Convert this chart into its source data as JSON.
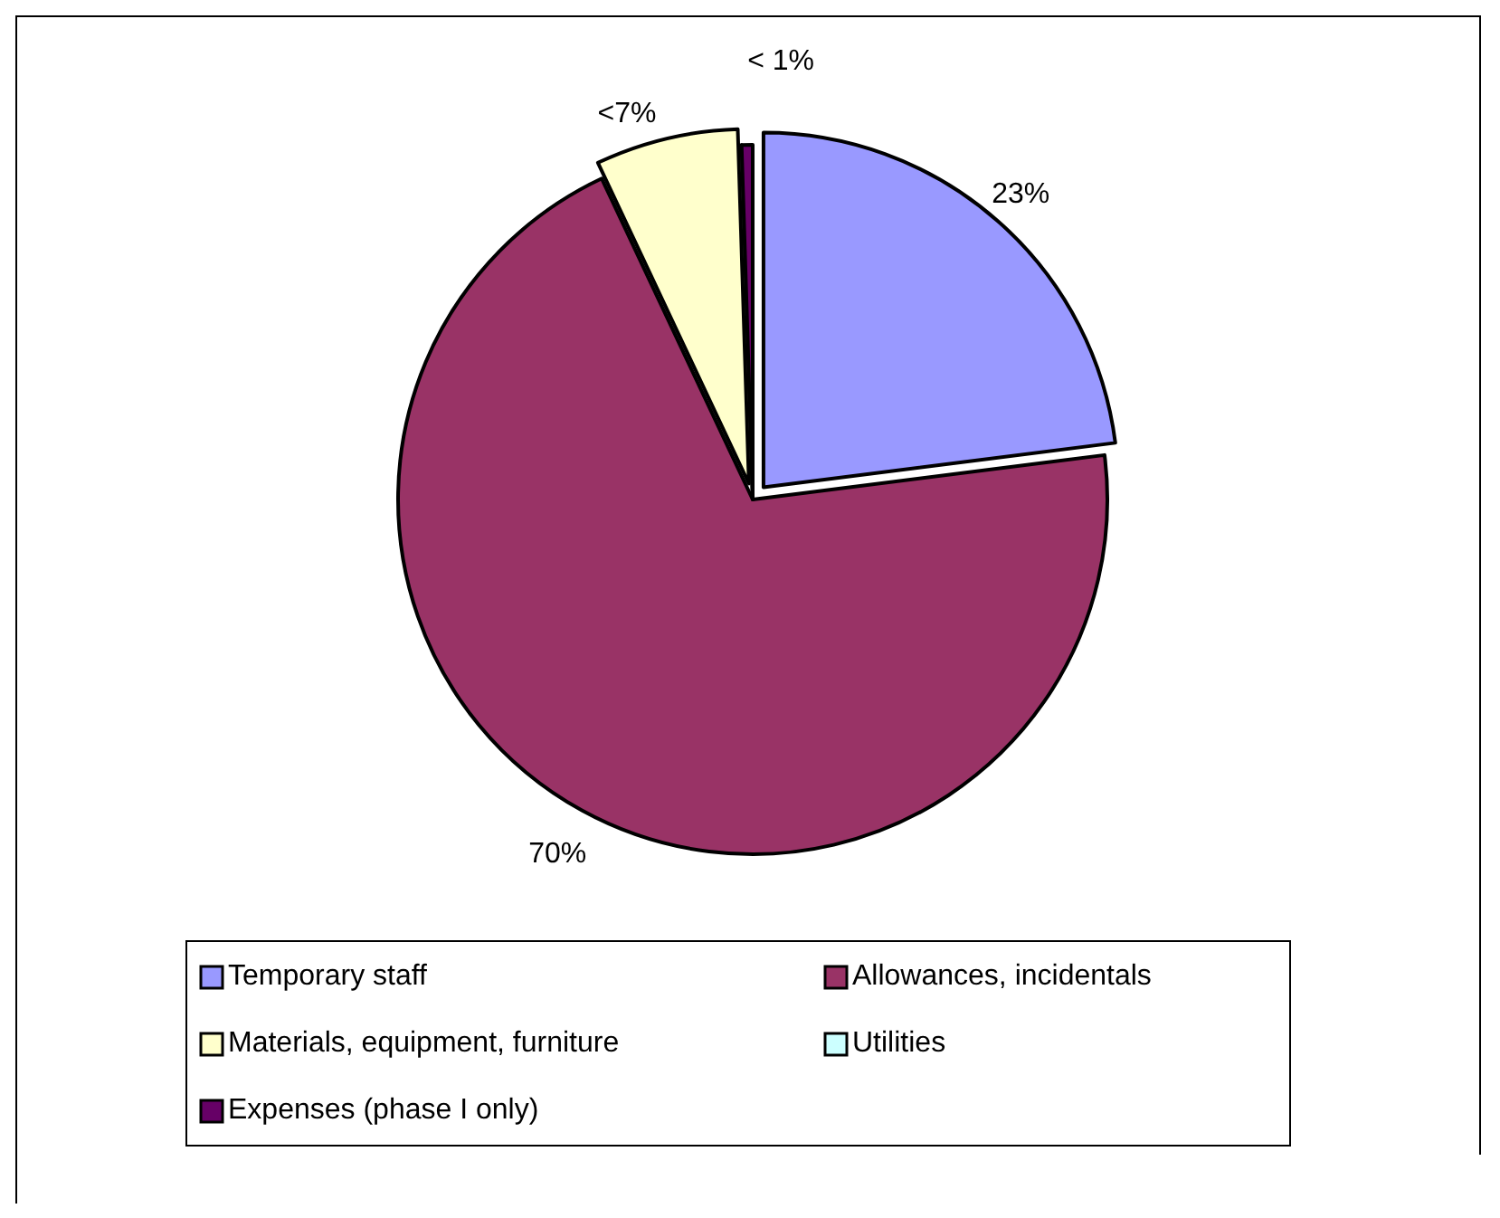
{
  "chart_data": {
    "type": "pie",
    "categories": [
      "Temporary staff",
      "Allowances, incidentals",
      "Materials, equipment, furniture",
      "Utilities",
      "Expenses (phase I only)"
    ],
    "values": [
      23,
      70,
      6.5,
      null,
      0.5
    ],
    "colors": [
      "#9999ff",
      "#993366",
      "#ffffcc",
      "#ccffff",
      "#660066"
    ],
    "value_labels": [
      "23%",
      "70%",
      "<7%",
      null,
      "< 1%"
    ],
    "legend": "bottom"
  }
}
